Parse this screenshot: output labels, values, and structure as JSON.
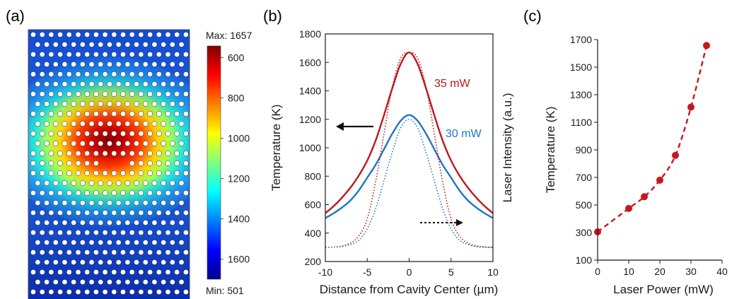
{
  "panels": {
    "a": {
      "label": "(a)"
    },
    "b": {
      "label": "(b)"
    },
    "c": {
      "label": "(c)"
    }
  },
  "colorbar": {
    "max_label": "Max: 1657",
    "min_label": "Min: 501",
    "ticks": [
      "1600",
      "1400",
      "1200",
      "1000",
      "800",
      "600"
    ]
  },
  "chart_data": [
    {
      "panel": "a",
      "type": "heatmap",
      "title": "",
      "colormap": "jet",
      "min": 501,
      "max": 1657,
      "colorbar_ticks": [
        600,
        800,
        1000,
        1200,
        1400,
        1600
      ],
      "hole_lattice": {
        "rows": 27,
        "cols": 18,
        "cavity_row": 13,
        "missing_holes": 3
      },
      "hotspot": "center"
    },
    {
      "panel": "b",
      "type": "line",
      "xlabel": "Distance from Cavity Center (µm)",
      "ylabel": "Temperature (K)",
      "y2label": "Laser Intensity (a.u.)",
      "xlim": [
        -10,
        10
      ],
      "ylim": [
        200,
        1800
      ],
      "xticks": [
        -10,
        -5,
        0,
        5,
        10
      ],
      "yticks": [
        200,
        400,
        600,
        800,
        1000,
        1200,
        1400,
        1600,
        1800
      ],
      "series": [
        {
          "name": "35 mW",
          "style": "solid",
          "color": "#c0161b",
          "axis": "left",
          "x": [
            -10,
            -9,
            -8,
            -7,
            -6,
            -5,
            -4,
            -3,
            -2,
            -1,
            0,
            1,
            2,
            3,
            4,
            5,
            6,
            7,
            8,
            9,
            10
          ],
          "y": [
            540,
            590,
            650,
            720,
            805,
            910,
            1050,
            1230,
            1420,
            1590,
            1670,
            1590,
            1420,
            1230,
            1050,
            910,
            805,
            720,
            650,
            590,
            540
          ]
        },
        {
          "name": "30 mW",
          "style": "solid",
          "color": "#1f77c4",
          "axis": "left",
          "x": [
            -10,
            -9,
            -8,
            -7,
            -6,
            -5,
            -4,
            -3,
            -2,
            -1,
            0,
            1,
            2,
            3,
            4,
            5,
            6,
            7,
            8,
            9,
            10
          ],
          "y": [
            505,
            540,
            580,
            630,
            700,
            790,
            880,
            990,
            1100,
            1190,
            1230,
            1190,
            1100,
            990,
            880,
            790,
            700,
            630,
            580,
            540,
            505
          ]
        },
        {
          "name": "",
          "style": "dotted",
          "color": "#c0161b",
          "axis": "right",
          "x": [
            -10,
            -9,
            -8,
            -7,
            -6,
            -5,
            -4,
            -3,
            -2,
            -1,
            0,
            1,
            2,
            3,
            4,
            5,
            6,
            7,
            8,
            9,
            10
          ],
          "y": [
            300,
            302,
            310,
            330,
            380,
            500,
            760,
            1100,
            1430,
            1630,
            1670,
            1630,
            1430,
            1100,
            760,
            500,
            380,
            330,
            310,
            302,
            300
          ]
        },
        {
          "name": "",
          "style": "dotted",
          "color": "#1f77c4",
          "axis": "right",
          "x": [
            -10,
            -9,
            -8,
            -7,
            -6,
            -5,
            -4,
            -3,
            -2,
            -1,
            0,
            1,
            2,
            3,
            4,
            5,
            6,
            7,
            8,
            9,
            10
          ],
          "y": [
            300,
            301,
            305,
            320,
            350,
            430,
            570,
            770,
            970,
            1140,
            1200,
            1140,
            970,
            770,
            570,
            430,
            350,
            320,
            305,
            301,
            300
          ]
        }
      ],
      "annotations": [
        {
          "text": "35 mW",
          "color": "#c0161b"
        },
        {
          "text": "30 mW",
          "color": "#1f77c4"
        }
      ]
    },
    {
      "panel": "c",
      "type": "line",
      "xlabel": "Laser Power (mW)",
      "ylabel": "Temperature (K)",
      "xlim": [
        0,
        40
      ],
      "ylim": [
        100,
        1700
      ],
      "xticks": [
        0,
        10,
        20,
        30,
        40
      ],
      "yticks": [
        100,
        300,
        500,
        700,
        900,
        1100,
        1300,
        1500,
        1700
      ],
      "series": [
        {
          "name": "",
          "style": "dashed",
          "color": "#c8161c",
          "markers": true,
          "x": [
            0,
            10,
            15,
            20,
            25,
            30,
            35
          ],
          "y": [
            305,
            475,
            560,
            680,
            860,
            1210,
            1657
          ]
        }
      ]
    }
  ]
}
